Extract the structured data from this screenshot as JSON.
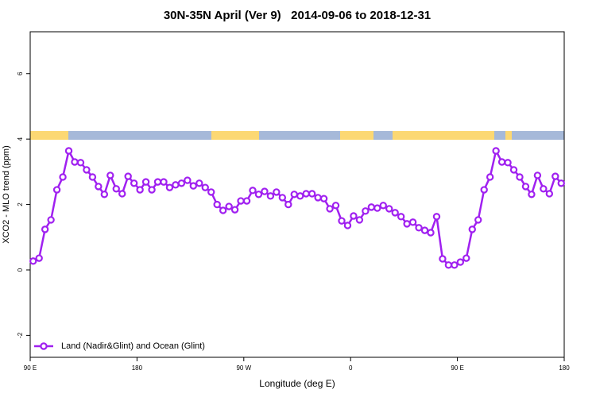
{
  "chart_data": {
    "type": "line",
    "title": "30N-35N April (Ver 9)   2014-09-06 to 2018-12-31",
    "x_label": "Longitude (deg E)",
    "y_label": "XCO2 - MLO trend (ppm)",
    "x": [
      92.5,
      97.5,
      102.5,
      107.5,
      112.5,
      117.5,
      122.5,
      127.5,
      132.5,
      137.5,
      142.5,
      147.5,
      152.5,
      157.5,
      162.5,
      167.5,
      172.5,
      177.5,
      182.5,
      187.5,
      192.5,
      197.5,
      202.5,
      207.5,
      212.5,
      217.5,
      222.5,
      227.5,
      232.5,
      237.5,
      242.5,
      247.5,
      252.5,
      257.5,
      262.5,
      267.5,
      272.5,
      277.5,
      282.5,
      287.5,
      292.5,
      297.5,
      302.5,
      307.5,
      312.5,
      317.5,
      322.5,
      327.5,
      332.5,
      337.5,
      342.5,
      347.5,
      352.5,
      357.5,
      362.5,
      367.5,
      372.5,
      377.5,
      382.5,
      387.5,
      392.5,
      397.5,
      402.5,
      407.5,
      412.5,
      417.5,
      422.5,
      427.5,
      432.5,
      437.5,
      442.5,
      447.5,
      452.5,
      457.5,
      462.5,
      467.5,
      472.5,
      477.5,
      482.5,
      487.5,
      492.5,
      497.5,
      502.5,
      507.5,
      512.5,
      517.5,
      522.5,
      527.5,
      532.5,
      537.5
    ],
    "series": [
      {
        "name": "Land (Nadir&Glint) and Ocean (Glint)",
        "color": "#a020f0",
        "values": [
          0.27,
          0.36,
          1.24,
          1.53,
          2.45,
          2.84,
          3.64,
          3.3,
          3.28,
          3.06,
          2.84,
          2.55,
          2.31,
          2.89,
          2.48,
          2.33,
          2.86,
          2.65,
          2.45,
          2.69,
          2.45,
          2.69,
          2.69,
          2.52,
          2.6,
          2.65,
          2.74,
          2.57,
          2.65,
          2.52,
          2.38,
          2.0,
          1.82,
          1.94,
          1.84,
          2.11,
          2.11,
          2.43,
          2.31,
          2.4,
          2.26,
          2.38,
          2.21,
          2.0,
          2.31,
          2.26,
          2.33,
          2.33,
          2.21,
          2.18,
          1.87,
          1.97,
          1.5,
          1.36,
          1.65,
          1.53,
          1.8,
          1.92,
          1.89,
          1.97,
          1.87,
          1.75,
          1.63,
          1.41,
          1.46,
          1.29,
          1.21,
          1.14,
          1.63,
          0.34,
          0.15,
          0.15,
          0.24,
          0.36,
          1.24,
          1.53,
          2.45,
          2.84,
          3.64,
          3.3,
          3.28,
          3.06,
          2.84,
          2.55,
          2.31,
          2.89,
          2.48,
          2.33,
          2.86,
          2.65
        ]
      }
    ],
    "xlim": [
      90,
      540
    ],
    "xticks": [
      {
        "value": 90,
        "label": "90 E"
      },
      180,
      {
        "value": 270,
        "label": "90 W"
      },
      {
        "value": 360,
        "label": "0"
      },
      {
        "value": 450,
        "label": "90 E"
      },
      {
        "value": 540,
        "label": "180"
      }
    ],
    "ylim": [
      -2.67,
      7.28
    ],
    "yticks": [
      -2,
      0,
      2,
      4,
      6
    ],
    "legend": "bottomleft"
  }
}
